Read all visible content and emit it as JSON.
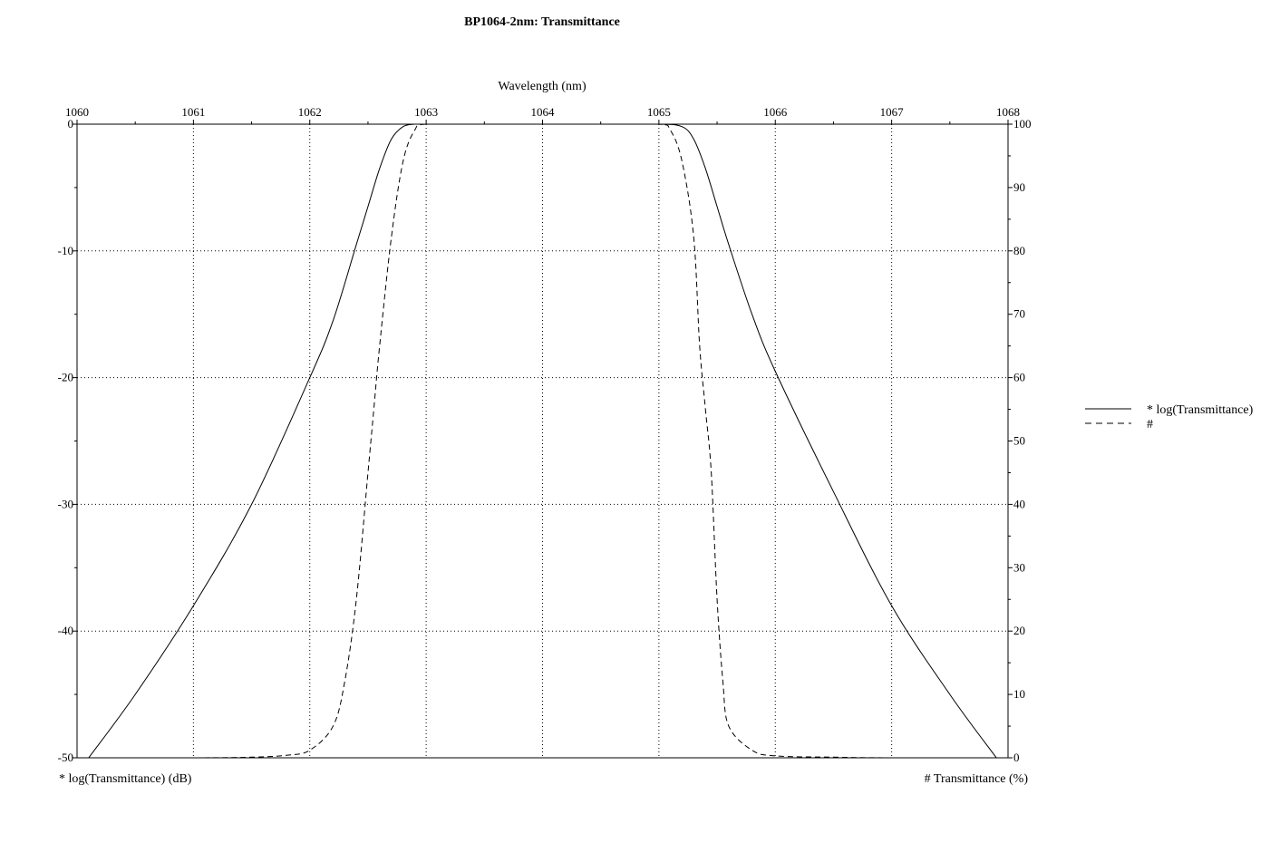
{
  "chart_data": {
    "type": "line",
    "title": "BP1064-2nm: Transmittance",
    "xlabel": "Wavelength (nm)",
    "ylabel_left": "* log(Transmittance) (dB)",
    "ylabel_right": "# Transmittance (%)",
    "xlim": [
      1060,
      1068
    ],
    "ylim_left": [
      -50,
      0
    ],
    "ylim_right": [
      0,
      100
    ],
    "x_ticks": [
      "1060",
      "1061",
      "1062",
      "1063",
      "1064",
      "1065",
      "1066",
      "1067",
      "1068"
    ],
    "y_left_ticks": [
      "0",
      "-10",
      "-20",
      "-30",
      "-40",
      "-50"
    ],
    "y_right_ticks": [
      "100",
      "90",
      "80",
      "70",
      "60",
      "50",
      "40",
      "30",
      "20",
      "10",
      "0"
    ],
    "grid": true,
    "legend_position": "right",
    "series": [
      {
        "name": "* log(Transmittance)",
        "axis": "left",
        "style": "solid",
        "x": [
          1060.1,
          1060.5,
          1061.0,
          1061.5,
          1062.0,
          1062.2,
          1062.4,
          1062.5,
          1062.6,
          1062.7,
          1062.8,
          1062.9,
          1063.0,
          1063.5,
          1064.0,
          1064.5,
          1065.0,
          1065.2,
          1065.3,
          1065.4,
          1065.5,
          1065.6,
          1065.8,
          1066.0,
          1066.5,
          1067.0,
          1067.5,
          1067.9
        ],
        "y": [
          -50,
          -45,
          -38,
          -30,
          -20,
          -15.5,
          -9.5,
          -6.5,
          -3.5,
          -1.2,
          -0.2,
          0,
          0,
          0,
          0,
          0,
          0,
          -0.2,
          -1.2,
          -3.5,
          -6.5,
          -9.5,
          -15,
          -19.5,
          -29,
          -38,
          -45,
          -50
        ]
      },
      {
        "name": "#",
        "axis": "right",
        "style": "dashed",
        "x": [
          1060.0,
          1061.0,
          1061.5,
          1061.8,
          1062.0,
          1062.2,
          1062.3,
          1062.4,
          1062.5,
          1062.55,
          1062.6,
          1062.7,
          1062.8,
          1062.9,
          1063.0,
          1063.5,
          1064.0,
          1064.5,
          1065.0,
          1065.1,
          1065.2,
          1065.3,
          1065.35,
          1065.4,
          1065.45,
          1065.5,
          1065.55,
          1065.6,
          1065.8,
          1066.0,
          1066.5,
          1067.0,
          1068.0
        ],
        "y": [
          0,
          0,
          0.1,
          0.4,
          1.2,
          5,
          12,
          25,
          45,
          55,
          65,
          82,
          94,
          99,
          100,
          100,
          100,
          100,
          100,
          99,
          94,
          82,
          65,
          55,
          45,
          25,
          12,
          5,
          1.2,
          0.3,
          0.1,
          0,
          0
        ]
      }
    ]
  }
}
